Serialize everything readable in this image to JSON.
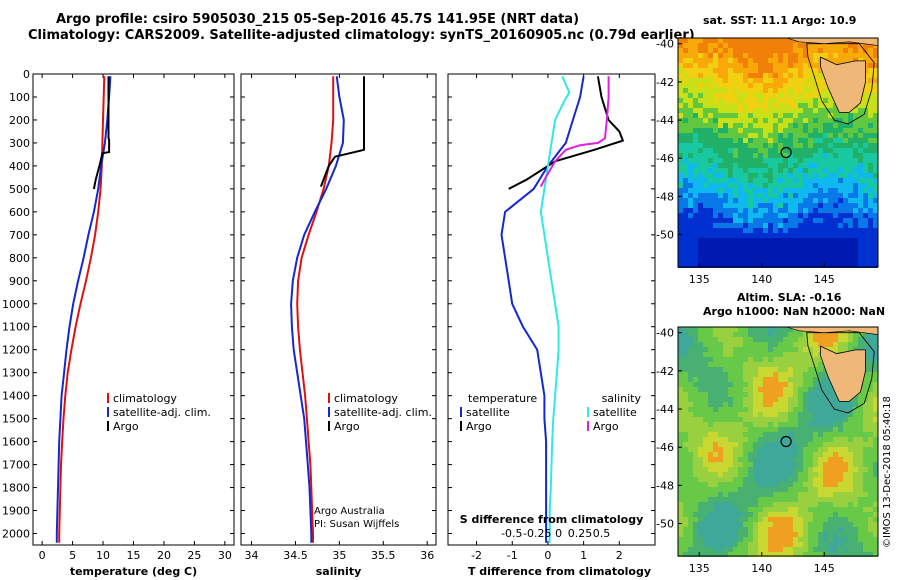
{
  "header": {
    "line1": "Argo profile: csiro 5905030_215 05-Sep-2016 45.7S 141.95E (NRT data)",
    "line2": "Climatology: CARS2009. Satellite-adjusted climatology: synTS_20160905.nc (0.79d earlier)"
  },
  "colors": {
    "climatology": "#e01010",
    "satellite": "#1428d0",
    "argo": "#000000",
    "satellite_salinity": "#30e8e8",
    "argo_salinity": "#e020e0"
  },
  "depth_axis": {
    "ticks": [
      0,
      100,
      200,
      300,
      400,
      500,
      600,
      700,
      800,
      900,
      1000,
      1100,
      1200,
      1300,
      1400,
      1500,
      1600,
      1700,
      1800,
      1900,
      2000
    ],
    "ylim": [
      2050,
      0
    ]
  },
  "chart_data": [
    {
      "type": "line",
      "xlabel": "temperature (deg C)",
      "xticks": [
        0,
        5,
        10,
        15,
        20,
        25,
        30
      ],
      "xlim": [
        -1.5,
        31.5
      ],
      "legend": [
        "climatology",
        "satellite-adj. clim.",
        "Argo"
      ],
      "series": [
        {
          "name": "climatology",
          "color_key": "climatology",
          "points": [
            [
              10.2,
              10
            ],
            [
              10.1,
              100
            ],
            [
              10.0,
              200
            ],
            [
              9.9,
              300
            ],
            [
              9.8,
              400
            ],
            [
              9.6,
              500
            ],
            [
              9.2,
              600
            ],
            [
              8.7,
              700
            ],
            [
              8.0,
              800
            ],
            [
              7.2,
              900
            ],
            [
              6.3,
              1000
            ],
            [
              5.5,
              1100
            ],
            [
              4.8,
              1200
            ],
            [
              4.2,
              1300
            ],
            [
              3.8,
              1400
            ],
            [
              3.5,
              1500
            ],
            [
              3.3,
              1600
            ],
            [
              3.1,
              1700
            ],
            [
              3.0,
              1800
            ],
            [
              2.9,
              1900
            ],
            [
              2.8,
              2000
            ],
            [
              2.8,
              2040
            ]
          ]
        },
        {
          "name": "satellite-adj. clim.",
          "color_key": "satellite",
          "points": [
            [
              11.2,
              10
            ],
            [
              11.0,
              100
            ],
            [
              10.7,
              200
            ],
            [
              10.3,
              300
            ],
            [
              9.7,
              400
            ],
            [
              9.2,
              500
            ],
            [
              8.5,
              600
            ],
            [
              7.6,
              700
            ],
            [
              6.8,
              800
            ],
            [
              5.9,
              900
            ],
            [
              5.1,
              1000
            ],
            [
              4.5,
              1100
            ],
            [
              4.0,
              1200
            ],
            [
              3.6,
              1300
            ],
            [
              3.2,
              1400
            ],
            [
              3.0,
              1500
            ],
            [
              2.8,
              1600
            ],
            [
              2.7,
              1700
            ],
            [
              2.6,
              1800
            ],
            [
              2.5,
              1900
            ],
            [
              2.4,
              2000
            ],
            [
              2.4,
              2040
            ]
          ]
        },
        {
          "name": "Argo",
          "color_key": "argo",
          "points": [
            [
              10.9,
              10
            ],
            [
              10.9,
              150
            ],
            [
              10.9,
              280
            ],
            [
              11.0,
              285
            ],
            [
              11.0,
              340
            ],
            [
              9.9,
              345
            ],
            [
              9.6,
              380
            ],
            [
              9.2,
              420
            ],
            [
              8.8,
              460
            ],
            [
              8.5,
              500
            ]
          ]
        }
      ]
    },
    {
      "type": "line",
      "xlabel": "salinity",
      "xticks": [
        34,
        34.5,
        35,
        35.5,
        36
      ],
      "xlim": [
        33.88,
        36.1
      ],
      "legend": [
        "climatology",
        "satellite-adj. clim.",
        "Argo"
      ],
      "series": [
        {
          "name": "climatology",
          "color_key": "climatology",
          "points": [
            [
              34.93,
              10
            ],
            [
              34.93,
              100
            ],
            [
              34.93,
              200
            ],
            [
              34.91,
              300
            ],
            [
              34.88,
              400
            ],
            [
              34.82,
              500
            ],
            [
              34.74,
              600
            ],
            [
              34.65,
              700
            ],
            [
              34.57,
              800
            ],
            [
              34.53,
              900
            ],
            [
              34.52,
              1000
            ],
            [
              34.53,
              1100
            ],
            [
              34.55,
              1200
            ],
            [
              34.58,
              1300
            ],
            [
              34.61,
              1400
            ],
            [
              34.63,
              1500
            ],
            [
              34.65,
              1600
            ],
            [
              34.67,
              1700
            ],
            [
              34.68,
              1800
            ],
            [
              34.69,
              1900
            ],
            [
              34.7,
              2000
            ],
            [
              34.7,
              2040
            ]
          ]
        },
        {
          "name": "satellite-adj. clim.",
          "color_key": "satellite",
          "points": [
            [
              34.97,
              10
            ],
            [
              35.0,
              100
            ],
            [
              35.05,
              200
            ],
            [
              35.04,
              300
            ],
            [
              34.96,
              400
            ],
            [
              34.85,
              500
            ],
            [
              34.72,
              600
            ],
            [
              34.6,
              700
            ],
            [
              34.52,
              800
            ],
            [
              34.47,
              900
            ],
            [
              34.45,
              1000
            ],
            [
              34.46,
              1100
            ],
            [
              34.48,
              1200
            ],
            [
              34.52,
              1300
            ],
            [
              34.56,
              1400
            ],
            [
              34.6,
              1500
            ],
            [
              34.62,
              1600
            ],
            [
              34.64,
              1700
            ],
            [
              34.66,
              1800
            ],
            [
              34.67,
              1900
            ],
            [
              34.68,
              2000
            ],
            [
              34.68,
              2040
            ]
          ]
        },
        {
          "name": "Argo",
          "color_key": "argo",
          "points": [
            [
              35.28,
              10
            ],
            [
              35.28,
              150
            ],
            [
              35.28,
              330
            ],
            [
              34.95,
              360
            ],
            [
              34.88,
              400
            ],
            [
              34.83,
              450
            ],
            [
              34.79,
              490
            ]
          ]
        }
      ]
    },
    {
      "type": "line",
      "xlabel": "T difference from climatology",
      "xlabel_top": "S difference from climatology",
      "xticks": [
        -2,
        -1,
        0,
        1,
        2
      ],
      "xticks_top": [
        "-0.5",
        "-0.25",
        "0",
        "0.25",
        "0.5"
      ],
      "xlim": [
        -2.8,
        3.0
      ],
      "legend_left_title": "temperature",
      "legend_right_title": "salinity",
      "legend_left": [
        "satellite",
        "Argo"
      ],
      "legend_right": [
        "satellite",
        "Argo"
      ],
      "series": [
        {
          "name": "satellite",
          "color_key": "satellite",
          "points": [
            [
              1.0,
              10
            ],
            [
              0.9,
              100
            ],
            [
              0.7,
              200
            ],
            [
              0.5,
              300
            ],
            [
              0.0,
              400
            ],
            [
              -0.4,
              500
            ],
            [
              -1.2,
              600
            ],
            [
              -1.3,
              700
            ],
            [
              -1.2,
              800
            ],
            [
              -1.1,
              900
            ],
            [
              -1.0,
              1000
            ],
            [
              -0.7,
              1100
            ],
            [
              -0.3,
              1200
            ],
            [
              -0.2,
              1300
            ],
            [
              -0.1,
              1400
            ],
            [
              -0.1,
              1500
            ],
            [
              -0.05,
              1600
            ],
            [
              -0.05,
              1700
            ],
            [
              -0.05,
              1800
            ],
            [
              -0.05,
              1900
            ],
            [
              -0.05,
              2000
            ],
            [
              -0.05,
              2040
            ]
          ]
        },
        {
          "name": "Argo",
          "color_key": "argo",
          "points": [
            [
              1.4,
              10
            ],
            [
              1.5,
              100
            ],
            [
              1.7,
              200
            ],
            [
              2.0,
              250
            ],
            [
              2.1,
              290
            ],
            [
              1.3,
              330
            ],
            [
              0.2,
              380
            ],
            [
              -0.6,
              460
            ],
            [
              -1.1,
              500
            ]
          ]
        },
        {
          "name": "satellite",
          "color_key": "satellite_salinity",
          "points": [
            [
              0.4,
              10
            ],
            [
              0.6,
              80
            ],
            [
              0.45,
              120
            ],
            [
              0.2,
              200
            ],
            [
              0.1,
              300
            ],
            [
              0.0,
              400
            ],
            [
              -0.1,
              500
            ],
            [
              -0.2,
              600
            ],
            [
              -0.1,
              700
            ],
            [
              0.0,
              800
            ],
            [
              0.1,
              900
            ],
            [
              0.2,
              1000
            ],
            [
              0.3,
              1100
            ],
            [
              0.3,
              1200
            ],
            [
              0.25,
              1300
            ],
            [
              0.2,
              1400
            ],
            [
              0.15,
              1500
            ],
            [
              0.12,
              1600
            ],
            [
              0.1,
              1700
            ],
            [
              0.08,
              1800
            ],
            [
              0.05,
              1900
            ],
            [
              0.05,
              2000
            ],
            [
              0.05,
              2040
            ]
          ]
        },
        {
          "name": "Argo",
          "color_key": "argo_salinity",
          "points": [
            [
              1.7,
              10
            ],
            [
              1.7,
              100
            ],
            [
              1.65,
              200
            ],
            [
              1.6,
              280
            ],
            [
              1.4,
              300
            ],
            [
              0.9,
              310
            ],
            [
              0.5,
              330
            ],
            [
              0.2,
              380
            ],
            [
              -0.1,
              460
            ],
            [
              -0.2,
              490
            ]
          ]
        }
      ]
    }
  ],
  "credits": {
    "line1": "Argo Australia",
    "line2": "PI: Susan Wijffels",
    "stamp": "©IMOS 13-Dec-2018 05:40:18"
  },
  "map_top": {
    "title": "sat. SST: 11.1 Argo: 10.9",
    "xticks": [
      "135",
      "140",
      "145"
    ],
    "yticks": [
      "-40",
      "-42",
      "-44",
      "-46",
      "-48",
      "-50"
    ]
  },
  "map_bottom": {
    "title_line1": "Altim. SLA: -0.16",
    "title_line2": "Argo h1000: NaN h2000: NaN",
    "xticks": [
      "135",
      "140",
      "145"
    ],
    "yticks": [
      "-40",
      "-42",
      "-44",
      "-46",
      "-48",
      "-50"
    ]
  }
}
